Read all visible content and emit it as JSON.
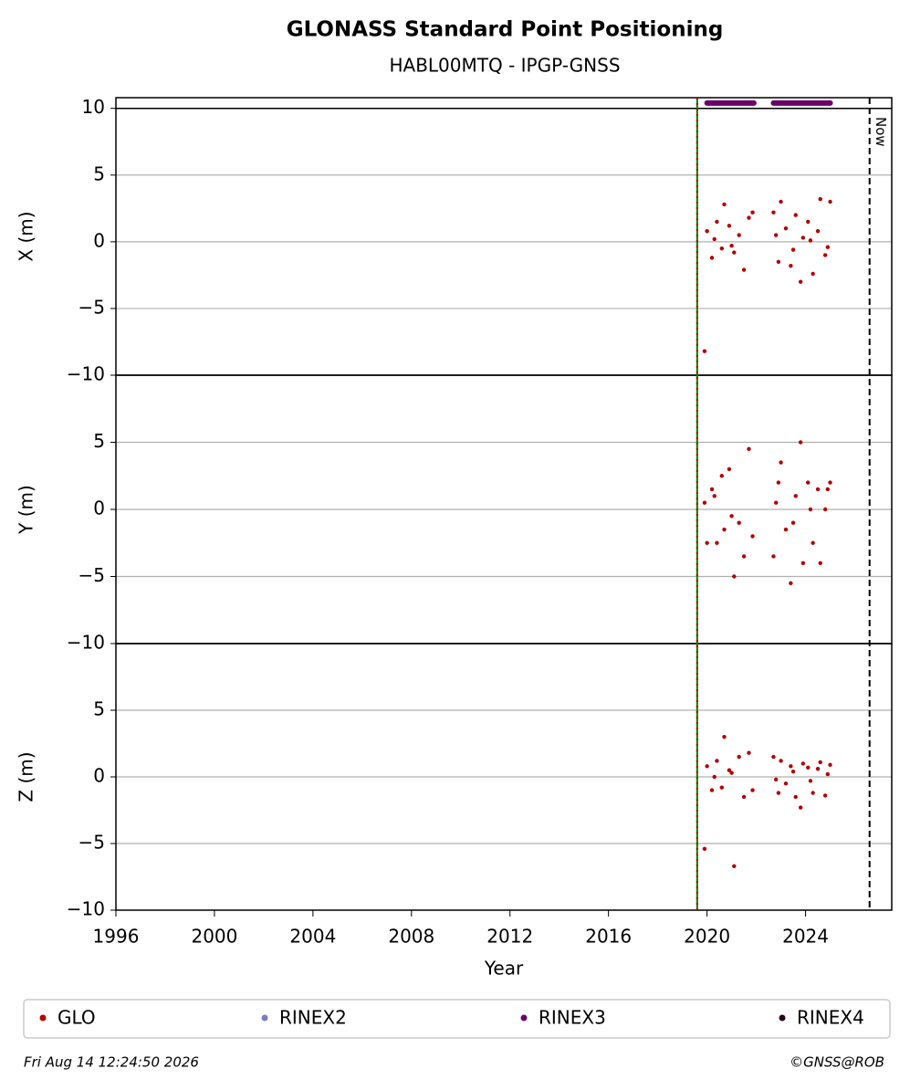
{
  "header": {
    "title": "GLONASS Standard Point Positioning",
    "subtitle": "HABL00MTQ - IPGP-GNSS"
  },
  "footer": {
    "left": "Fri Aug 14 12:24:50 2026",
    "right": "©GNSS@ROB"
  },
  "legend": [
    {
      "name": "GLO",
      "color": "#b30000"
    },
    {
      "name": "RINEX2",
      "color": "#7b7bbf"
    },
    {
      "name": "RINEX3",
      "color": "#6b006b"
    },
    {
      "name": "RINEX4",
      "color": "#2a0020"
    }
  ],
  "chart_data": [
    {
      "type": "scatter",
      "ylabel": "X (m)",
      "ylim": [
        -10,
        10.8
      ],
      "yticks": [
        {
          "value": -10,
          "label": "−10"
        },
        {
          "value": -5,
          "label": "−5"
        },
        0,
        5,
        10
      ],
      "grid": true,
      "series": [
        {
          "name": "GLO",
          "color": "#b30000",
          "x": [
            2019.9,
            2020.0,
            2020.2,
            2020.4,
            2020.6,
            2020.7,
            2020.9,
            2021.1,
            2021.3,
            2021.5,
            2021.7,
            2021.85,
            2022.7,
            2022.9,
            2023.0,
            2023.2,
            2023.4,
            2023.6,
            2023.8,
            2023.9,
            2024.1,
            2024.3,
            2024.5,
            2024.6,
            2024.8,
            2025.0,
            2020.3,
            2021.0,
            2022.8,
            2023.5,
            2024.2,
            2024.9
          ],
          "values": [
            -8.2,
            0.8,
            -1.2,
            1.5,
            -0.5,
            2.8,
            1.2,
            -0.8,
            0.5,
            -2.1,
            1.8,
            2.2,
            2.2,
            -1.5,
            3.0,
            1.0,
            -1.8,
            2.0,
            -3.0,
            0.3,
            1.5,
            -2.4,
            0.8,
            3.2,
            -1.0,
            3.0,
            0.2,
            -0.3,
            0.5,
            -0.6,
            0.1,
            -0.4
          ]
        },
        {
          "name": "RINEX3",
          "color": "#6b006b",
          "x": [
            2020.0,
            2021.9,
            2022.3,
            2022.7,
            2025.0
          ],
          "values": [
            10.4,
            10.4,
            null,
            10.4,
            10.4
          ]
        }
      ]
    },
    {
      "type": "scatter",
      "ylabel": "Y (m)",
      "ylim": [
        -10,
        10
      ],
      "yticks": [
        {
          "value": -10,
          "label": "−10"
        },
        {
          "value": -5,
          "label": "−5"
        },
        0,
        5
      ],
      "grid": true,
      "series": [
        {
          "name": "GLO",
          "color": "#b30000",
          "x": [
            2019.9,
            2020.0,
            2020.2,
            2020.4,
            2020.6,
            2020.7,
            2020.9,
            2021.1,
            2021.3,
            2021.5,
            2021.7,
            2021.85,
            2022.7,
            2022.9,
            2023.0,
            2023.2,
            2023.4,
            2023.6,
            2023.8,
            2023.9,
            2024.1,
            2024.3,
            2024.5,
            2024.6,
            2024.8,
            2025.0,
            2020.3,
            2021.0,
            2022.8,
            2023.5,
            2024.2,
            2024.9
          ],
          "values": [
            0.5,
            -2.5,
            1.5,
            -2.5,
            2.5,
            -1.5,
            3,
            -5,
            -1,
            -3.5,
            4.5,
            -2,
            -3.5,
            2,
            3.5,
            -1.5,
            -5.5,
            1,
            5,
            -4,
            2,
            -2.5,
            1.5,
            -4,
            0,
            2,
            1,
            -0.5,
            0.5,
            -1,
            0,
            1.5
          ]
        }
      ]
    },
    {
      "type": "scatter",
      "ylabel": "Z (m)",
      "ylim": [
        -10,
        10
      ],
      "yticks": [
        {
          "value": -10,
          "label": "−10"
        },
        {
          "value": -5,
          "label": "−5"
        },
        0,
        5
      ],
      "grid": true,
      "xlabel": "Year",
      "xlim": [
        1996,
        2027.5
      ],
      "xticks": [
        1996,
        2000,
        2004,
        2008,
        2012,
        2016,
        2020,
        2024
      ],
      "events": [
        2019.6
      ],
      "now": {
        "x": 2026.6,
        "label": "Now"
      },
      "series": [
        {
          "name": "GLO",
          "color": "#b30000",
          "x": [
            2019.9,
            2020.0,
            2020.2,
            2020.4,
            2020.6,
            2020.7,
            2020.9,
            2021.1,
            2021.3,
            2021.5,
            2021.7,
            2021.85,
            2022.7,
            2022.9,
            2023.0,
            2023.2,
            2023.4,
            2023.6,
            2023.8,
            2023.9,
            2024.1,
            2024.3,
            2024.5,
            2024.6,
            2024.8,
            2025.0,
            2020.3,
            2021.0,
            2022.8,
            2023.5,
            2024.2,
            2024.9
          ],
          "values": [
            -5.4,
            0.8,
            -1,
            1.2,
            -0.8,
            3,
            0.5,
            -6.7,
            1.5,
            -1.5,
            1.8,
            -1,
            1.5,
            -1.2,
            1.2,
            -0.5,
            0.8,
            -1.5,
            -2.3,
            1,
            0.7,
            -1.2,
            0.6,
            1.1,
            -1.4,
            0.9,
            0,
            0.3,
            -0.2,
            0.4,
            -0.3,
            0.2
          ]
        }
      ]
    }
  ]
}
